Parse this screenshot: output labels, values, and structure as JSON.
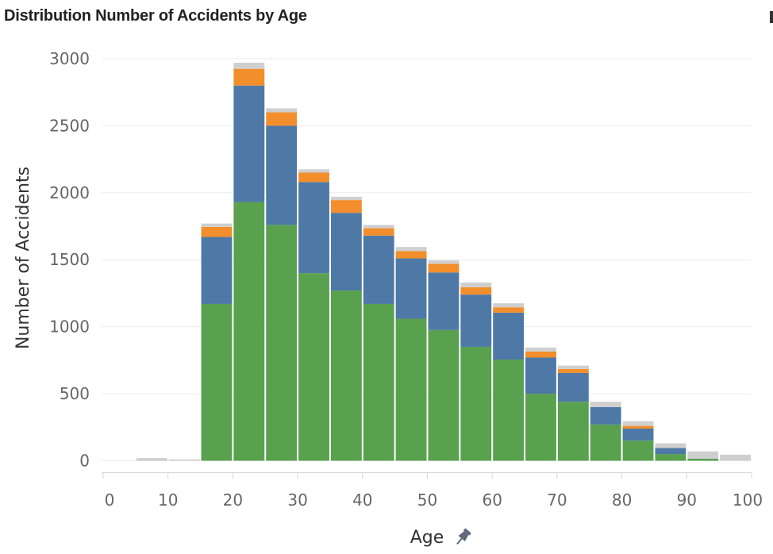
{
  "title": "Distribution Number of Accidents by Age",
  "pin_icon": "pin-icon",
  "chart_data": {
    "type": "bar",
    "stacked": true,
    "title": "Distribution Number of Accidents by Age",
    "xlabel": "Age",
    "ylabel": "Number of Accidents",
    "xlim": [
      0,
      100
    ],
    "ylim": [
      -80,
      3000
    ],
    "x_ticks": [
      0,
      10,
      20,
      30,
      40,
      50,
      60,
      70,
      80,
      90,
      100
    ],
    "y_ticks": [
      0,
      500,
      1000,
      1500,
      2000,
      2500,
      3000
    ],
    "grid": true,
    "bin_width": 5,
    "bin_starts": [
      5,
      10,
      15,
      20,
      25,
      30,
      35,
      40,
      45,
      50,
      55,
      60,
      65,
      70,
      75,
      80,
      85,
      90,
      95
    ],
    "series": [
      {
        "color": "#59a14f",
        "values": [
          0,
          0,
          1170,
          1930,
          1760,
          1400,
          1270,
          1170,
          1060,
          975,
          850,
          755,
          500,
          440,
          270,
          150,
          50,
          15,
          0
        ]
      },
      {
        "color": "#4e79a7",
        "values": [
          0,
          0,
          500,
          870,
          740,
          680,
          580,
          510,
          450,
          430,
          390,
          350,
          270,
          215,
          130,
          90,
          45,
          0,
          0
        ]
      },
      {
        "color": "#f28e2b",
        "values": [
          0,
          0,
          75,
          125,
          100,
          70,
          95,
          55,
          55,
          65,
          55,
          40,
          45,
          30,
          0,
          20,
          0,
          0,
          0
        ]
      },
      {
        "color": "#cfcfcf",
        "values": [
          20,
          10,
          25,
          45,
          30,
          25,
          25,
          25,
          30,
          25,
          35,
          30,
          30,
          25,
          40,
          35,
          35,
          55,
          45
        ]
      }
    ]
  }
}
